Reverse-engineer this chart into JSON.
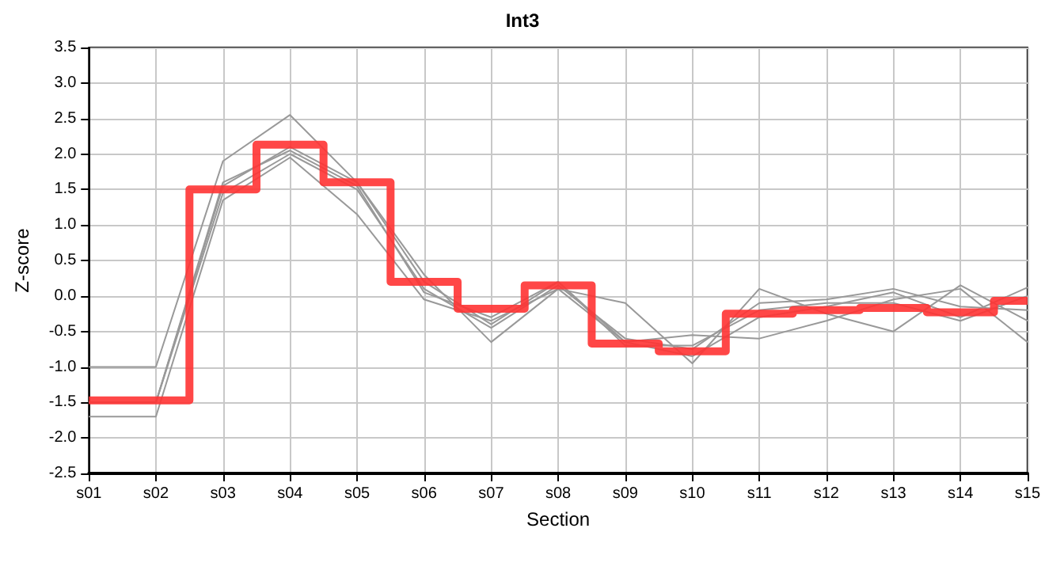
{
  "chart_data": {
    "type": "line",
    "title": "Int3",
    "xlabel": "Section",
    "ylabel": "Z-score",
    "categories": [
      "s01",
      "s02",
      "s03",
      "s04",
      "s05",
      "s06",
      "s07",
      "s08",
      "s09",
      "s10",
      "s11",
      "s12",
      "s13",
      "s14",
      "s15"
    ],
    "series": [
      {
        "color": "#999999",
        "values": [
          -1.0,
          -1.0,
          1.9,
          2.55,
          1.6,
          0.3,
          -0.65,
          0.1,
          -0.1,
          -0.95,
          0.1,
          -0.25,
          -0.5,
          0.15,
          -0.35
        ]
      },
      {
        "color": "#999999",
        "values": [
          -1.7,
          -1.7,
          1.35,
          1.95,
          1.15,
          -0.05,
          -0.35,
          0.1,
          -0.65,
          -0.55,
          -0.6,
          -0.35,
          -0.05,
          0.1,
          -0.65
        ]
      },
      {
        "color": "#999999",
        "values": [
          -1.5,
          -1.5,
          1.45,
          2.0,
          1.5,
          0.1,
          -0.45,
          0.15,
          -0.6,
          -0.75,
          -0.1,
          -0.05,
          0.1,
          -0.15,
          -0.2
        ]
      },
      {
        "color": "#999999",
        "values": [
          -1.5,
          -1.5,
          1.55,
          2.1,
          1.6,
          0.2,
          -0.4,
          0.2,
          -0.65,
          -0.85,
          -0.3,
          -0.15,
          0.05,
          -0.3,
          0.12
        ]
      },
      {
        "color": "#999999",
        "values": [
          null,
          -1.5,
          1.6,
          2.05,
          1.55,
          0.05,
          -0.3,
          0.2,
          -0.7,
          -0.7,
          -0.2,
          -0.1,
          -0.1,
          -0.35,
          0.0
        ]
      },
      {
        "type": "step",
        "color": "#ff3333",
        "values": [
          -1.47,
          -1.47,
          1.5,
          2.13,
          1.6,
          0.2,
          -0.18,
          0.15,
          -0.67,
          -0.78,
          -0.25,
          -0.2,
          -0.17,
          -0.23,
          -0.07
        ]
      }
    ],
    "ylim": [
      -2.5,
      3.5
    ],
    "yticks": [
      -2.5,
      {
        "value": -2,
        "label": "-2.0"
      },
      -1.5,
      {
        "value": -1,
        "label": "-1.0"
      },
      -0.5,
      {
        "value": 0,
        "label": "0.0"
      },
      0.5,
      {
        "value": 1,
        "label": "1.0"
      },
      1.5,
      {
        "value": 2,
        "label": "2.0"
      },
      2.5,
      {
        "value": 3,
        "label": "3.0"
      },
      3.5
    ],
    "grid": true,
    "marker": "none"
  }
}
